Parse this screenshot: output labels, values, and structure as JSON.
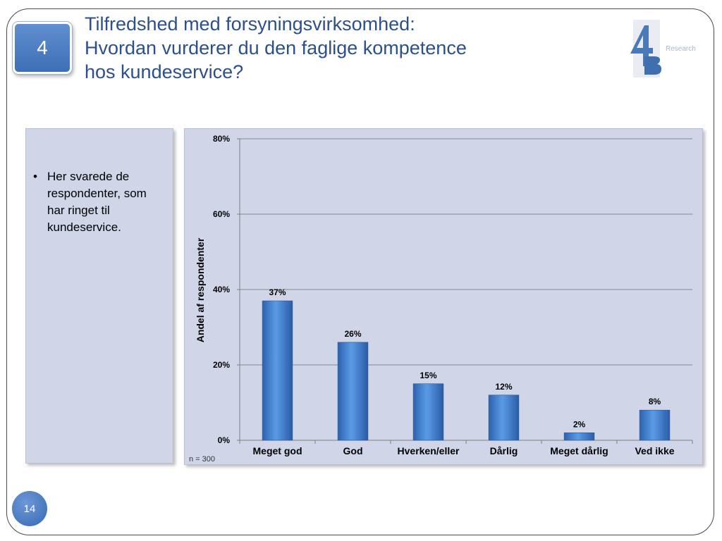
{
  "slide": {
    "section_number": "4",
    "title_lines": [
      "Tilfredshed med forsyningsvirksomhed:",
      "Hvordan vurderer du den faglige kompetence",
      "hos kundeservice?"
    ],
    "logo_text": "Research",
    "page_number": "14"
  },
  "note": {
    "bullet": "•",
    "text": "Her svarede de respondenter, som har ringet til kundeservice."
  },
  "chart_data": {
    "type": "bar",
    "categories": [
      "Meget god",
      "God",
      "Hverken/eller",
      "Dårlig",
      "Meget dårlig",
      "Ved ikke"
    ],
    "values": [
      37,
      26,
      15,
      12,
      2,
      8
    ],
    "value_labels": [
      "37%",
      "26%",
      "15%",
      "12%",
      "2%",
      "8%"
    ],
    "ylabel": "Andel af respondenter",
    "ylim": [
      0,
      80
    ],
    "yticks": [
      0,
      20,
      40,
      60,
      80
    ],
    "ytick_labels": [
      "0%",
      "20%",
      "40%",
      "60%",
      "80%"
    ],
    "grid": true,
    "footnote": "n = 300",
    "bar_color": "#3f7fcf"
  }
}
